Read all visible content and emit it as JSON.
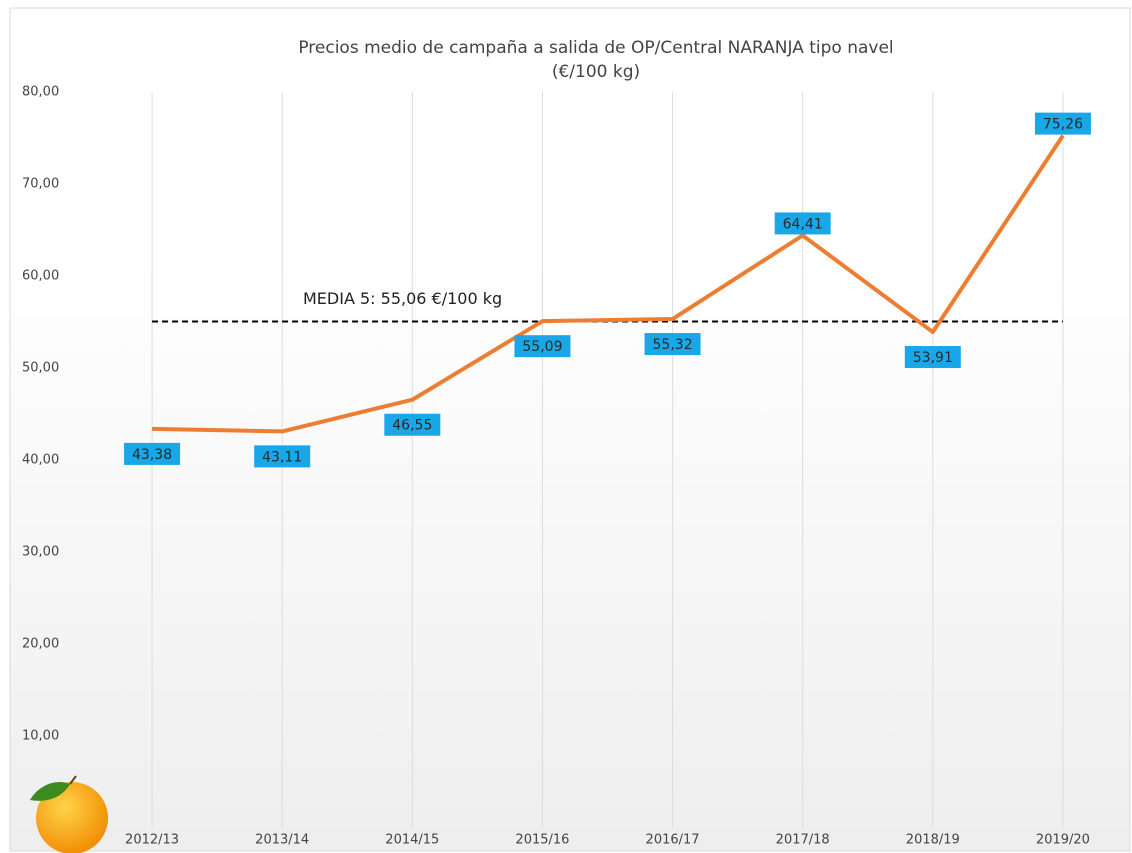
{
  "chart_data": {
    "type": "line",
    "title": "Precios medio de campaña a salida de OP/Central NARANJA tipo navel",
    "subtitle": "(€/100 kg)",
    "categories": [
      "2012/13",
      "2013/14",
      "2014/15",
      "2015/16",
      "2016/17",
      "2017/18",
      "2018/19",
      "2019/20"
    ],
    "series": [
      {
        "name": "NARANJA tipo navel",
        "color": "#ed7d31",
        "values": [
          43.38,
          43.11,
          46.55,
          55.09,
          55.32,
          64.41,
          53.91,
          75.26
        ],
        "value_labels": [
          "43,38",
          "43,11",
          "46,55",
          "55,09",
          "55,32",
          "64,41",
          "53,91",
          "75,26"
        ]
      }
    ],
    "mean": {
      "label": "MEDIA 5: 55,06 €/100 kg",
      "value": 55.06,
      "color": "#000000"
    },
    "ylim": [
      0,
      80
    ],
    "yticks": [
      {
        "value": 10,
        "label": "10,00"
      },
      {
        "value": 20,
        "label": "20,00"
      },
      {
        "value": 30,
        "label": "30,00"
      },
      {
        "value": 40,
        "label": "40,00"
      },
      {
        "value": 50,
        "label": "50,00"
      },
      {
        "value": 60,
        "label": "60,00"
      },
      {
        "value": 70,
        "label": "70,00"
      },
      {
        "value": 80,
        "label": "80,00"
      }
    ],
    "label_color": "#1aa7e8",
    "grid": true
  }
}
